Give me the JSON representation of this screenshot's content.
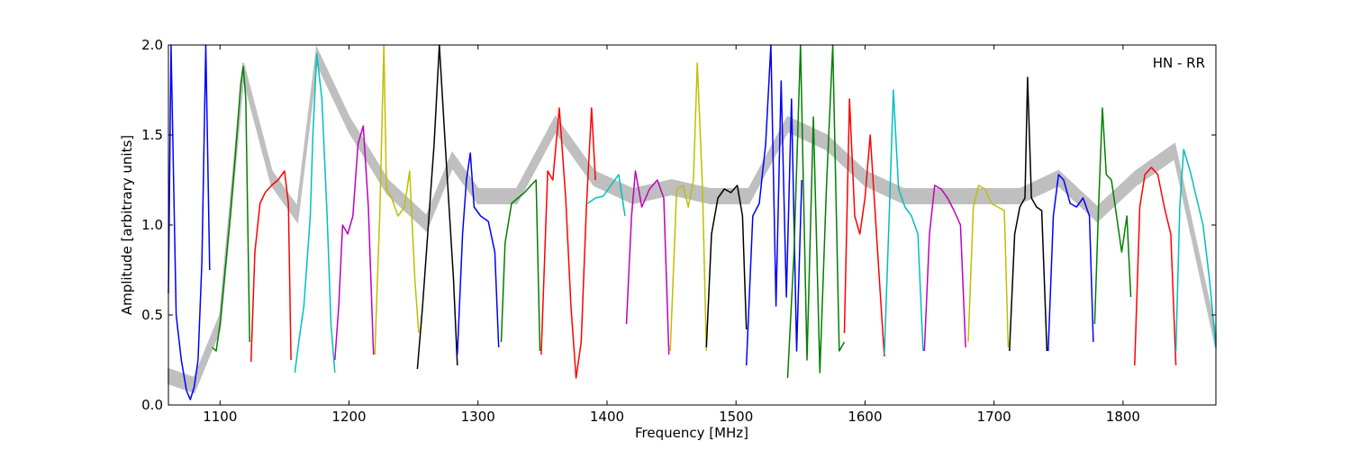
{
  "chart_data": {
    "type": "line",
    "title": "",
    "xlabel": "Frequency [MHz]",
    "ylabel": "Amplitude [arbitrary units]",
    "xlim": [
      1060,
      1872
    ],
    "ylim": [
      0.0,
      2.0
    ],
    "xticks": [
      1100,
      1200,
      1300,
      1400,
      1500,
      1600,
      1700,
      1800
    ],
    "yticks": [
      0.0,
      0.5,
      1.0,
      1.5,
      2.0
    ],
    "xtick_labels": [
      "1100",
      "1200",
      "1300",
      "1400",
      "1500",
      "1600",
      "1700",
      "1800"
    ],
    "ytick_labels": [
      "0.0",
      "0.5",
      "1.0",
      "1.5",
      "2.0"
    ],
    "annotation": "HN - RR",
    "grid": false,
    "background_series_color": "#bfbfbf",
    "series": [
      {
        "color": "#0000ff",
        "x": [
          1060,
          1062,
          1066,
          1070,
          1074,
          1077,
          1080,
          1083,
          1086,
          1089,
          1092
        ],
        "y": [
          0.62,
          2.0,
          0.5,
          0.25,
          0.08,
          0.03,
          0.1,
          0.25,
          0.8,
          2.0,
          0.75
        ]
      },
      {
        "color": "#008000",
        "x": [
          1094,
          1097,
          1100,
          1104,
          1108,
          1112,
          1116,
          1118,
          1120,
          1123
        ],
        "y": [
          0.32,
          0.3,
          0.45,
          0.75,
          1.05,
          1.4,
          1.78,
          1.88,
          1.7,
          0.35
        ]
      },
      {
        "color": "#ff0000",
        "x": [
          1124,
          1127,
          1131,
          1135,
          1140,
          1145,
          1150,
          1153,
          1155
        ],
        "y": [
          0.24,
          0.85,
          1.12,
          1.18,
          1.22,
          1.25,
          1.3,
          1.12,
          0.25
        ]
      },
      {
        "color": "#00bfbf",
        "x": [
          1158,
          1161,
          1165,
          1170,
          1172,
          1175,
          1179,
          1183,
          1186,
          1189
        ],
        "y": [
          0.18,
          0.35,
          0.55,
          1.05,
          1.5,
          1.95,
          1.7,
          1.05,
          0.45,
          0.18
        ]
      },
      {
        "color": "#bf00bf",
        "x": [
          1189,
          1192,
          1195,
          1199,
          1203,
          1207,
          1211,
          1215,
          1219
        ],
        "y": [
          0.25,
          0.55,
          1.0,
          0.95,
          1.05,
          1.45,
          1.55,
          1.1,
          0.28
        ]
      },
      {
        "color": "#bfbf00",
        "x": [
          1220,
          1224,
          1227,
          1229,
          1233,
          1238,
          1243,
          1247,
          1251,
          1254
        ],
        "y": [
          0.28,
          1.1,
          2.0,
          1.2,
          1.15,
          1.05,
          1.1,
          1.3,
          0.7,
          0.4
        ]
      },
      {
        "color": "#000000",
        "x": [
          1253,
          1257,
          1262,
          1266,
          1270,
          1275,
          1278,
          1281,
          1284
        ],
        "y": [
          0.2,
          0.55,
          1.05,
          1.45,
          2.0,
          1.4,
          1.05,
          0.7,
          0.22
        ]
      },
      {
        "color": "#0000ff",
        "x": [
          1284,
          1288,
          1291,
          1294,
          1297,
          1302,
          1308,
          1313,
          1316
        ],
        "y": [
          0.28,
          0.95,
          1.25,
          1.4,
          1.1,
          1.05,
          1.02,
          0.85,
          0.32
        ]
      },
      {
        "color": "#008000",
        "x": [
          1318,
          1321,
          1326,
          1331,
          1336,
          1341,
          1345,
          1348
        ],
        "y": [
          0.35,
          0.9,
          1.12,
          1.15,
          1.18,
          1.22,
          1.25,
          0.3
        ]
      },
      {
        "color": "#ff0000",
        "x": [
          1349,
          1354,
          1358,
          1363,
          1368,
          1372,
          1376,
          1380,
          1384,
          1388,
          1391
        ],
        "y": [
          0.28,
          1.3,
          1.25,
          1.65,
          1.15,
          0.55,
          0.15,
          0.35,
          1.1,
          1.65,
          1.25
        ]
      },
      {
        "color": "#00bfbf",
        "x": [
          1385,
          1391,
          1397,
          1403,
          1409,
          1414
        ],
        "y": [
          1.12,
          1.15,
          1.16,
          1.22,
          1.28,
          1.05
        ]
      },
      {
        "color": "#bf00bf",
        "x": [
          1415,
          1419,
          1422,
          1427,
          1433,
          1439,
          1444,
          1448
        ],
        "y": [
          0.45,
          1.05,
          1.3,
          1.1,
          1.2,
          1.25,
          1.15,
          0.28
        ]
      },
      {
        "color": "#bfbf00",
        "x": [
          1449,
          1454,
          1459,
          1463,
          1467,
          1470,
          1474,
          1477
        ],
        "y": [
          0.3,
          1.2,
          1.22,
          1.1,
          1.25,
          1.9,
          1.2,
          0.3
        ]
      },
      {
        "color": "#000000",
        "x": [
          1477,
          1481,
          1486,
          1491,
          1496,
          1501,
          1505,
          1508
        ],
        "y": [
          0.32,
          0.95,
          1.15,
          1.2,
          1.18,
          1.22,
          1.05,
          0.42
        ]
      },
      {
        "color": "#0000ff",
        "x": [
          1508,
          1513,
          1518,
          1523,
          1527,
          1531,
          1535,
          1539,
          1543,
          1547,
          1551
        ],
        "y": [
          0.22,
          1.05,
          1.12,
          1.45,
          2.0,
          0.55,
          1.8,
          0.6,
          1.7,
          0.3,
          1.25
        ]
      },
      {
        "color": "#008000",
        "x": [
          1540,
          1545,
          1550,
          1555,
          1560,
          1565,
          1570,
          1575,
          1580,
          1584
        ],
        "y": [
          0.15,
          0.85,
          2.0,
          0.25,
          1.6,
          0.18,
          1.2,
          2.0,
          0.3,
          0.35
        ]
      },
      {
        "color": "#ff0000",
        "x": [
          1584,
          1588,
          1592,
          1596,
          1600,
          1604,
          1608,
          1612,
          1615
        ],
        "y": [
          0.4,
          1.7,
          1.05,
          0.95,
          1.15,
          1.5,
          1.05,
          0.6,
          0.27
        ]
      },
      {
        "color": "#00bfbf",
        "x": [
          1615,
          1619,
          1622,
          1626,
          1631,
          1636,
          1641,
          1645
        ],
        "y": [
          0.28,
          1.1,
          1.75,
          1.2,
          1.1,
          1.05,
          0.95,
          0.3
        ]
      },
      {
        "color": "#bf00bf",
        "x": [
          1646,
          1650,
          1654,
          1659,
          1664,
          1669,
          1674,
          1678
        ],
        "y": [
          0.3,
          0.95,
          1.22,
          1.2,
          1.15,
          1.08,
          1.0,
          0.32
        ]
      },
      {
        "color": "#bfbf00",
        "x": [
          1680,
          1684,
          1688,
          1693,
          1698,
          1703,
          1708,
          1711
        ],
        "y": [
          0.35,
          1.1,
          1.22,
          1.2,
          1.12,
          1.1,
          1.08,
          0.32
        ]
      },
      {
        "color": "#000000",
        "x": [
          1712,
          1716,
          1720,
          1724,
          1726,
          1729,
          1733,
          1737,
          1741
        ],
        "y": [
          0.3,
          0.95,
          1.1,
          1.15,
          1.82,
          1.15,
          1.1,
          1.08,
          0.3
        ]
      },
      {
        "color": "#0000ff",
        "x": [
          1742,
          1746,
          1750,
          1754,
          1759,
          1764,
          1769,
          1774,
          1777
        ],
        "y": [
          0.3,
          1.05,
          1.28,
          1.25,
          1.12,
          1.1,
          1.15,
          1.05,
          0.35
        ]
      },
      {
        "color": "#008000",
        "x": [
          1778,
          1781,
          1784,
          1787,
          1791,
          1795,
          1799,
          1803,
          1806
        ],
        "y": [
          0.45,
          1.1,
          1.65,
          1.28,
          1.25,
          1.05,
          0.85,
          1.05,
          0.6
        ]
      },
      {
        "color": "#ff0000",
        "x": [
          1809,
          1813,
          1817,
          1822,
          1827,
          1832,
          1837,
          1841
        ],
        "y": [
          0.22,
          1.1,
          1.28,
          1.32,
          1.28,
          1.1,
          0.95,
          0.22
        ]
      },
      {
        "color": "#00bfbf",
        "x": [
          1841,
          1844,
          1847,
          1852,
          1857,
          1862,
          1867,
          1872
        ],
        "y": [
          0.3,
          1.1,
          1.42,
          1.3,
          1.15,
          1.0,
          0.7,
          0.32
        ]
      }
    ],
    "background_band": {
      "x": [
        1060,
        1080,
        1100,
        1118,
        1140,
        1160,
        1175,
        1200,
        1230,
        1260,
        1280,
        1300,
        1330,
        1360,
        1390,
        1420,
        1450,
        1480,
        1510,
        1540,
        1570,
        1600,
        1630,
        1660,
        1690,
        1720,
        1750,
        1780,
        1810,
        1840,
        1872
      ],
      "y": [
        0.2,
        0.15,
        0.5,
        1.9,
        1.3,
        1.1,
        1.98,
        1.6,
        1.25,
        1.05,
        1.4,
        1.2,
        1.2,
        1.6,
        1.3,
        1.2,
        1.25,
        1.2,
        1.2,
        1.6,
        1.5,
        1.3,
        1.2,
        1.2,
        1.2,
        1.2,
        1.3,
        1.1,
        1.3,
        1.45,
        0.4
      ]
    }
  }
}
